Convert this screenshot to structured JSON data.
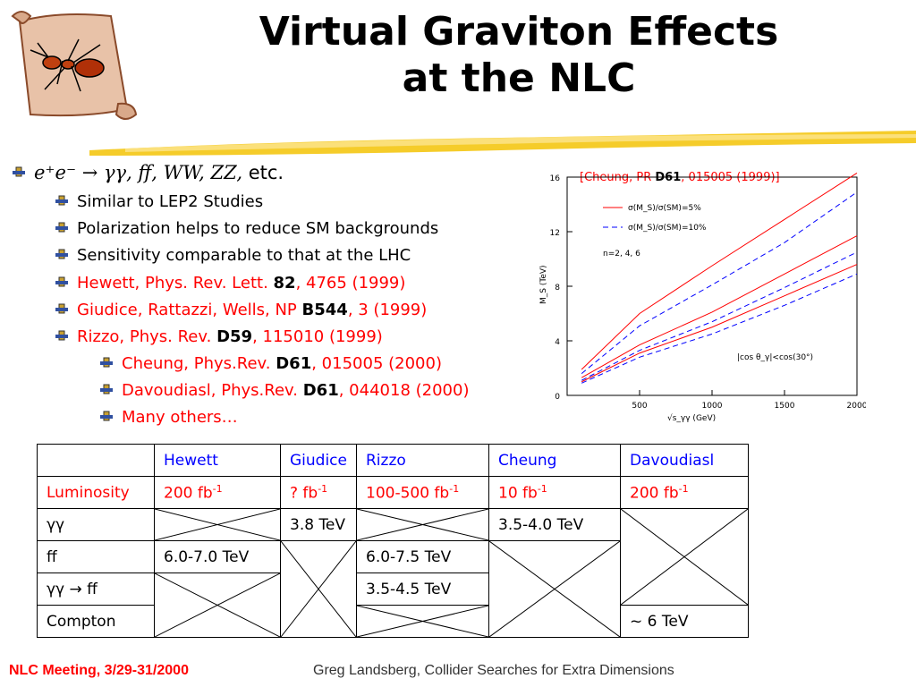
{
  "title_line1": "Virtual Graviton Effects",
  "title_line2": "at the NLC",
  "bullet_main": {
    "process_italic": "e⁺e⁻ → γγ, ff, WW, ZZ,",
    "etc": "etc."
  },
  "sub_items": [
    {
      "text": "Similar to LEP2 Studies"
    },
    {
      "text": "Polarization helps to reduce SM backgrounds"
    },
    {
      "text": "Sensitivity comparable to that at the LHC"
    },
    {
      "pre": "Hewett, Phys. Rev. Lett. ",
      "bold": "82",
      "post": ", 4765 (1999)"
    },
    {
      "pre": "Giudice, Rattazzi, Wells, NP ",
      "bold": "B544",
      "post": ", 3 (1999)"
    },
    {
      "pre": "Rizzo, Phys. Rev. ",
      "bold": "D59",
      "post": ", 115010 (1999)"
    }
  ],
  "subsub_items": [
    {
      "pre": "Cheung, Phys.Rev. ",
      "bold": "D61",
      "post": ", 015005 (2000)"
    },
    {
      "pre": "Davoudiasl, Phys.Rev. ",
      "bold": "D61",
      "post": ", 044018 (2000)"
    },
    {
      "text": "Many others…"
    }
  ],
  "chart_citation": {
    "pre": "[Cheung, PR ",
    "bold": "D61",
    "post": ", 015005 (1999)]"
  },
  "chart_data": {
    "type": "line",
    "x": [
      100,
      500,
      1000,
      1500,
      2000
    ],
    "xlim": [
      0,
      2000
    ],
    "ylim": [
      0,
      16
    ],
    "xticks": [
      "500",
      "1000",
      "1500",
      "2000"
    ],
    "yticks": [
      "0",
      "4",
      "8",
      "12",
      "16"
    ],
    "xlabel": "√s_γγ  (GeV)",
    "ylabel": "M_S  (TeV)",
    "legend": [
      "σ(M_S)/σ(SM)=5%",
      "σ(M_S)/σ(SM)=10%"
    ],
    "annotations": [
      "n=2, 4, 6",
      "|cos θ_γ|<cos(30°)"
    ],
    "series": [
      {
        "name": "σ(M_S)/σ(SM)=5%",
        "style": "solid",
        "color": "#ff0000",
        "values": [
          1.9,
          6.0,
          9.5,
          12.9,
          16.3
        ]
      },
      {
        "name": "σ(M_S)/σ(SM)=10%",
        "style": "dashed",
        "color": "#0000ff",
        "values": [
          1.6,
          5.1,
          8.1,
          11.2,
          14.9
        ]
      },
      {
        "name": "σ(M_S)/σ(SM)=5%",
        "style": "solid",
        "color": "#ff0000",
        "values": [
          1.3,
          3.7,
          6.1,
          8.9,
          11.7
        ]
      },
      {
        "name": "σ(M_S)/σ(SM)=10%",
        "style": "dashed",
        "color": "#0000ff",
        "values": [
          1.1,
          3.3,
          5.4,
          7.9,
          10.5
        ]
      },
      {
        "name": "σ(M_S)/σ(SM)=5%",
        "style": "solid",
        "color": "#ff0000",
        "values": [
          1.0,
          3.1,
          5.0,
          7.3,
          9.6
        ]
      },
      {
        "name": "σ(M_S)/σ(SM)=10%",
        "style": "dashed",
        "color": "#0000ff",
        "values": [
          0.9,
          2.8,
          4.5,
          6.6,
          8.9
        ]
      }
    ]
  },
  "table": {
    "headers": [
      "",
      "Hewett",
      "Giudice",
      "Rizzo",
      "Cheung",
      "Davoudiasl"
    ],
    "row_labels": [
      "Luminosity",
      "γγ",
      "ff",
      "γγ → ff",
      "Compton"
    ],
    "lum_values": [
      "200 fb",
      "? fb",
      "100-500 fb",
      "10 fb",
      "200 fb"
    ],
    "lum_exp": "-1",
    "giudice_gg": "3.8 TeV",
    "cheung_gg": "3.5-4.0 TeV",
    "hewett_ff": "6.0-7.0 TeV",
    "rizzo_ff": "6.0-7.5 TeV",
    "rizzo_ggff": "3.5-4.5 TeV",
    "dav_compton": "~ 6 TeV"
  },
  "footer_left": "NLC Meeting, 3/29-31/2000",
  "footer_right": "Greg Landsberg, Collider Searches for Extra Dimensions"
}
